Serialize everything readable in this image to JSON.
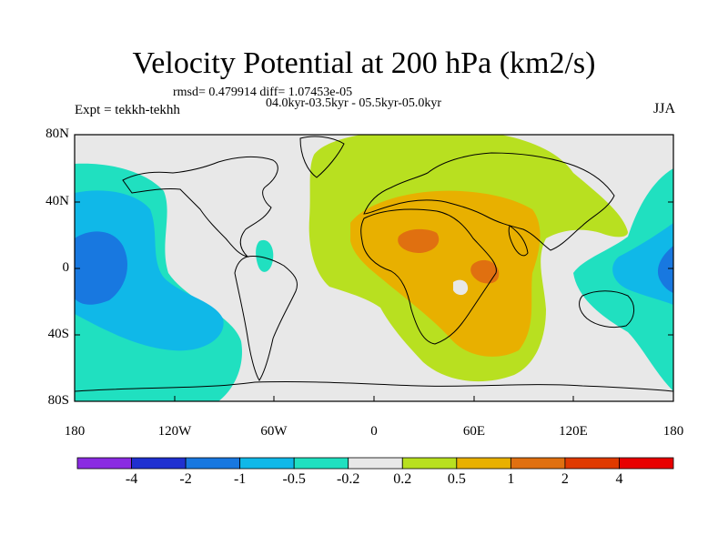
{
  "title": "Velocity Potential at 200 hPa (km2/s)",
  "stats": "rmsd= 0.479914 diff= 1.07453e-05",
  "period": "04.0kyr-03.5kyr - 05.5kyr-05.0kyr",
  "experiment": "Expt = tekkh-tekhh",
  "season": "JJA",
  "lat_labels": [
    "80N",
    "40N",
    "0",
    "40S",
    "80S"
  ],
  "lon_labels": [
    "180",
    "120W",
    "60W",
    "0",
    "60E",
    "120E",
    "180"
  ],
  "colorbar": {
    "labels": [
      "-4",
      "-2",
      "-1",
      "-0.5",
      "-0.2",
      "0.2",
      "0.5",
      "1",
      "2",
      "4"
    ],
    "colors": [
      "#8a2be2",
      "#2030d0",
      "#1878e0",
      "#10b8e8",
      "#20e0c0",
      "#e8e8e8",
      "#b8e020",
      "#e8b000",
      "#e07010",
      "#e03a00",
      "#e80000"
    ]
  },
  "regions": {
    "neutral": "#e8e8e8",
    "neg_weak": "#20e0c0",
    "neg_mid": "#10b8e8",
    "neg_strong": "#1878e0",
    "pos_weak": "#b8e020",
    "pos_mid": "#e8b000",
    "pos_strong": "#e07010"
  }
}
